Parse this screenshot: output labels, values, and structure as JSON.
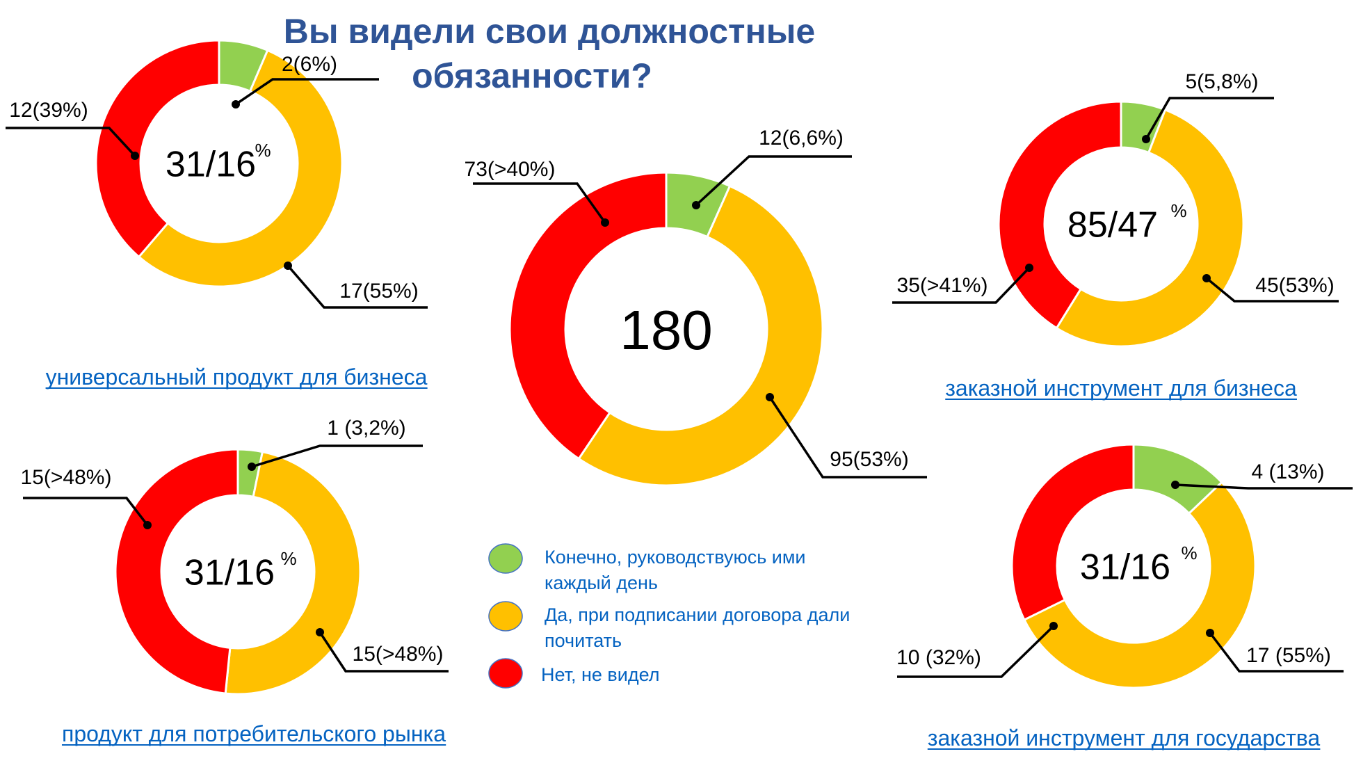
{
  "title_line1": "Вы видели свои должностные",
  "title_line2": "обязанности?",
  "legend": [
    {
      "line1": "Конечно, руководствуюсь ими",
      "line2": "каждый день",
      "color": "#92d050"
    },
    {
      "line1": "Да, при подписании договора дали",
      "line2": "почитать",
      "color": "#ffc000"
    },
    {
      "line1": "Нет, не видел",
      "line2": "",
      "color": "#ff0000"
    }
  ],
  "colors": {
    "green": "#92d050",
    "yellow": "#ffc000",
    "red": "#ff0000",
    "title": "#2f5496",
    "caption": "#0563c1"
  },
  "chart_data": [
    {
      "type": "pie",
      "variant": "donut",
      "center_text": "31/16",
      "center_suffix": "%",
      "caption": "универсальный продукт для бизнеса",
      "slices": [
        {
          "value": 2,
          "label": "2(6%)",
          "color": "#92d050"
        },
        {
          "value": 17,
          "label": "17(55%)",
          "color": "#ffc000"
        },
        {
          "value": 12,
          "label": "12(39%)",
          "color": "#ff0000"
        }
      ]
    },
    {
      "type": "pie",
      "variant": "donut",
      "center_text": "180",
      "center_suffix": "",
      "caption": "",
      "slices": [
        {
          "value": 12,
          "label": "12(6,6%)",
          "color": "#92d050"
        },
        {
          "value": 95,
          "label": "95(53%)",
          "color": "#ffc000"
        },
        {
          "value": 73,
          "label": "73(>40%)",
          "color": "#ff0000"
        }
      ]
    },
    {
      "type": "pie",
      "variant": "donut",
      "center_text": "85/47",
      "center_suffix": "%",
      "caption": "заказной инструмент для бизнеса",
      "slices": [
        {
          "value": 5,
          "label": "5(5,8%)",
          "color": "#92d050"
        },
        {
          "value": 45,
          "label": "45(53%)",
          "color": "#ffc000"
        },
        {
          "value": 35,
          "label": "35(>41%)",
          "color": "#ff0000"
        }
      ]
    },
    {
      "type": "pie",
      "variant": "donut",
      "center_text": "31/16",
      "center_suffix": "%",
      "caption": "продукт для потребительского рынка",
      "slices": [
        {
          "value": 1,
          "label": "1 (3,2%)",
          "color": "#92d050"
        },
        {
          "value": 15,
          "label": "15(>48%)",
          "color": "#ffc000"
        },
        {
          "value": 15,
          "label": "15(>48%)",
          "color": "#ff0000"
        }
      ]
    },
    {
      "type": "pie",
      "variant": "donut",
      "center_text": "31/16",
      "center_suffix": "%",
      "caption": "заказной инструмент для государства",
      "slices": [
        {
          "value": 4,
          "label": "4 (13%)",
          "color": "#92d050"
        },
        {
          "value": 17,
          "label": "17 (55%)",
          "color": "#ffc000"
        },
        {
          "value": 10,
          "label": "10 (32%)",
          "color": "#ff0000"
        }
      ]
    }
  ]
}
